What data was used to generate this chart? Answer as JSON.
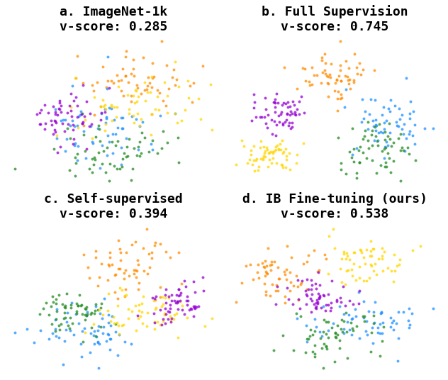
{
  "titles": [
    "a. ImageNet-1k\nv-score: 0.285",
    "b. Full Supervision\nv-score: 0.745",
    "c. Self-supervised\nv-score: 0.394",
    "d. IB Fine-tuning (ours)\nv-score: 0.538"
  ],
  "n_classes": 5,
  "colors": [
    "#FF8C00",
    "#1E90FF",
    "#228B22",
    "#FFD700",
    "#9400D3"
  ],
  "n_points": 300,
  "dot_size": 8,
  "alpha": 0.75,
  "bg_color": "#FFFFFF",
  "title_fontsize": 13,
  "seed": 42
}
